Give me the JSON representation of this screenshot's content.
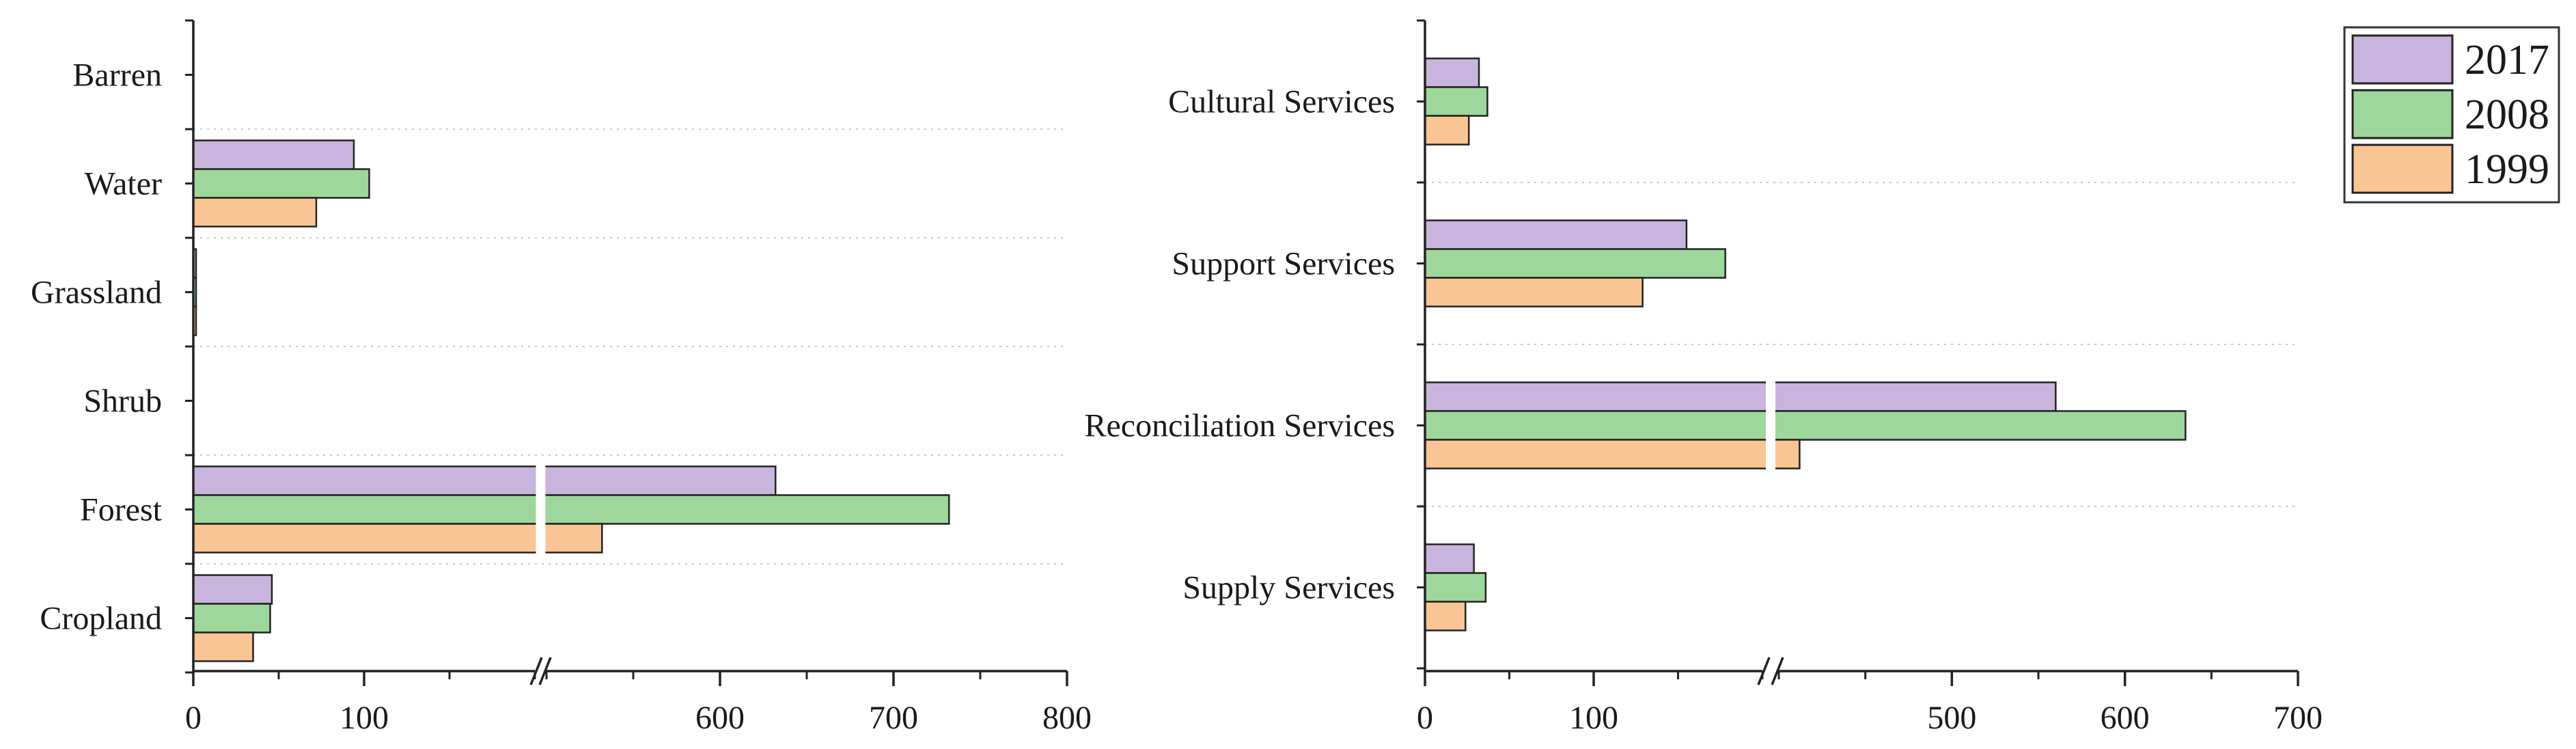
{
  "chart_data": [
    {
      "type": "bar",
      "orientation": "horizontal",
      "title": "",
      "xlabel": "",
      "ylabel": "",
      "categories": [
        "Barren",
        "Water",
        "Grassland",
        "Shrub",
        "Forest",
        "Cropland"
      ],
      "series": [
        {
          "name": "2017",
          "values": [
            0,
            94,
            1,
            0,
            632,
            46
          ]
        },
        {
          "name": "2008",
          "values": [
            0,
            103,
            1,
            0,
            732,
            45
          ]
        },
        {
          "name": "1999",
          "values": [
            0,
            72,
            1,
            0,
            532,
            35
          ]
        }
      ],
      "axis_break": {
        "from": 200,
        "to": 500
      },
      "xticks": [
        0,
        100,
        600,
        700,
        800
      ],
      "xlim": [
        0,
        800
      ],
      "grid": "dotted horizontal"
    },
    {
      "type": "bar",
      "orientation": "horizontal",
      "title": "",
      "xlabel": "",
      "ylabel": "",
      "categories": [
        "Cultural Services",
        "Support Services",
        "Reconciliation Services",
        "Supply Services"
      ],
      "series": [
        {
          "name": "2017",
          "values": [
            32,
            155,
            560,
            29
          ]
        },
        {
          "name": "2008",
          "values": [
            37,
            178,
            635,
            36
          ]
        },
        {
          "name": "1999",
          "values": [
            26,
            129,
            412,
            24
          ]
        }
      ],
      "axis_break": {
        "from": 200,
        "to": 400
      },
      "xticks": [
        0,
        100,
        500,
        600,
        700
      ],
      "xlim": [
        0,
        700
      ],
      "grid": "dotted horizontal"
    }
  ],
  "legend": {
    "position": "top-right",
    "entries": [
      {
        "label": "2017",
        "color": "#C8B4DC"
      },
      {
        "label": "2008",
        "color": "#9ED79B"
      },
      {
        "label": "1999",
        "color": "#FAC595"
      }
    ]
  }
}
